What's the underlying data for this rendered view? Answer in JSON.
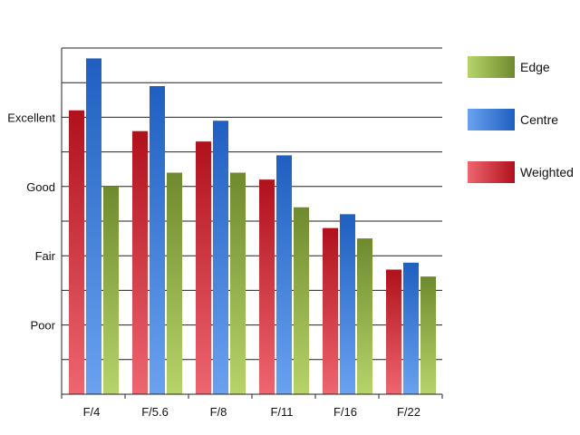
{
  "chart_data": {
    "type": "bar",
    "categories": [
      "F/4",
      "F/5.6",
      "F/8",
      "F/11",
      "F/16",
      "F/22"
    ],
    "series": [
      {
        "name": "Weighted",
        "values": [
          82,
          76,
          73,
          62,
          48,
          36
        ],
        "color_light": "#ee6670",
        "color_dark": "#b0111b"
      },
      {
        "name": "Centre",
        "values": [
          97,
          89,
          79,
          69,
          52,
          38
        ],
        "color_light": "#6aa2f0",
        "color_dark": "#1f5fc0"
      },
      {
        "name": "Edge",
        "values": [
          60,
          64,
          64,
          54,
          45,
          34
        ],
        "color_light": "#b7d46a",
        "color_dark": "#6f8a2e"
      }
    ],
    "ylim": [
      0,
      100
    ],
    "y_tick_labels": [
      {
        "value": 20,
        "label": "Poor"
      },
      {
        "value": 40,
        "label": "Fair"
      },
      {
        "value": 60,
        "label": "Good"
      },
      {
        "value": 80,
        "label": "Excellent"
      }
    ],
    "grid": true,
    "legend": {
      "placement": "right",
      "order": [
        "Edge",
        "Centre",
        "Weighted"
      ]
    }
  }
}
